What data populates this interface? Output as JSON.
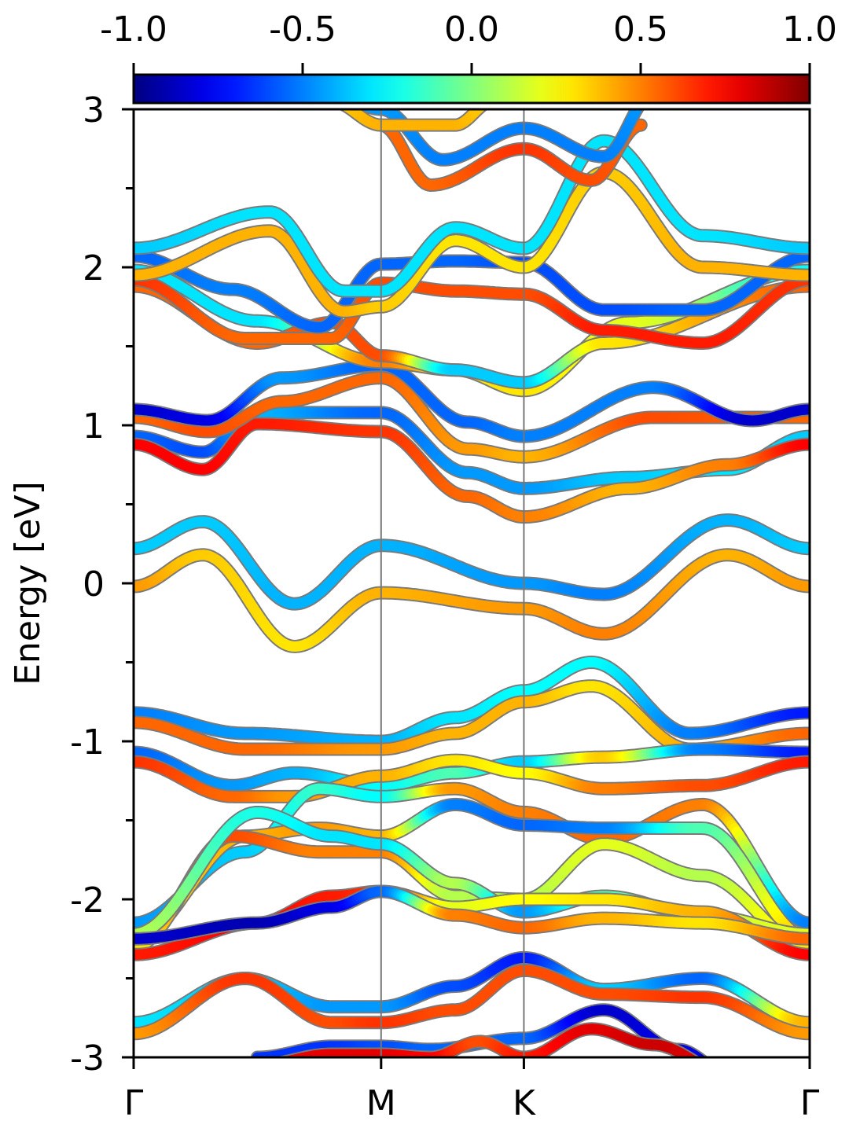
{
  "chart_data": {
    "type": "line",
    "title": "",
    "xlabel": "",
    "ylabel": "Energy [eV]",
    "ylim": [
      -3,
      3
    ],
    "yticks": [
      "-3",
      "-2",
      "-1",
      "0",
      "1",
      "2",
      "3"
    ],
    "xticks": [
      {
        "label": "Γ",
        "pos": 0.0
      },
      {
        "label": "M",
        "pos": 1.0
      },
      {
        "label": "K",
        "pos": 1.577
      },
      {
        "label": "Γ",
        "pos": 2.732
      }
    ],
    "colorbar": {
      "colormap": "jet",
      "range": [
        -1.0,
        1.0
      ],
      "ticks": [
        "-1.0",
        "-0.5",
        "0.0",
        "0.5",
        "1.0"
      ]
    },
    "grid": false,
    "series": [
      {
        "x": [
          0,
          0.28,
          0.65,
          1.0,
          1.577,
          1.9,
          2.4,
          2.732
        ],
        "y": [
          0.22,
          0.39,
          -0.13,
          0.24,
          0.0,
          -0.07,
          0.4,
          0.22
        ],
        "c": [
          -0.35,
          -0.35,
          -0.4,
          -0.4,
          -0.45,
          -0.5,
          -0.4,
          -0.35
        ]
      },
      {
        "x": [
          0,
          0.28,
          0.65,
          1.0,
          1.577,
          1.9,
          2.4,
          2.732
        ],
        "y": [
          -0.02,
          0.18,
          -0.4,
          -0.06,
          -0.16,
          -0.32,
          0.18,
          -0.02
        ],
        "c": [
          0.45,
          0.35,
          0.3,
          0.4,
          0.45,
          0.5,
          0.4,
          0.45
        ]
      },
      {
        "x": [
          0,
          0.28,
          0.5,
          1.0,
          1.35,
          1.577,
          2.0,
          2.4,
          2.732
        ],
        "y": [
          0.93,
          0.83,
          1.08,
          1.08,
          0.7,
          0.6,
          0.67,
          0.72,
          0.93
        ],
        "c": [
          -0.55,
          -0.6,
          -0.4,
          -0.55,
          -0.45,
          -0.45,
          -0.35,
          -0.3,
          -0.35
        ]
      },
      {
        "x": [
          0,
          0.28,
          0.5,
          1.0,
          1.35,
          1.577,
          2.0,
          2.4,
          2.732
        ],
        "y": [
          0.88,
          0.72,
          1.01,
          0.96,
          0.55,
          0.42,
          0.6,
          0.75,
          0.88
        ],
        "c": [
          0.75,
          0.75,
          0.7,
          0.65,
          0.55,
          0.5,
          0.4,
          0.5,
          0.75
        ]
      },
      {
        "x": [
          0,
          0.3,
          0.6,
          1.0,
          1.35,
          1.577,
          2.1,
          2.732
        ],
        "y": [
          1.05,
          0.96,
          1.15,
          1.3,
          0.85,
          0.8,
          1.05,
          1.05
        ],
        "c": [
          0.55,
          0.6,
          0.55,
          0.55,
          0.45,
          0.4,
          0.6,
          0.55
        ]
      },
      {
        "x": [
          0,
          0.3,
          0.6,
          1.0,
          1.35,
          1.577,
          2.1,
          2.5,
          2.732
        ],
        "y": [
          1.1,
          1.03,
          1.3,
          1.38,
          1.02,
          0.93,
          1.24,
          1.03,
          1.1
        ],
        "c": [
          -0.85,
          -0.8,
          -0.45,
          -0.55,
          -0.55,
          -0.5,
          -0.5,
          -0.85,
          -0.85
        ]
      },
      {
        "x": [
          0,
          0.5,
          1.0,
          1.3,
          1.577,
          2.0,
          2.732
        ],
        "y": [
          1.98,
          1.66,
          1.4,
          1.35,
          1.22,
          1.65,
          1.98
        ],
        "c": [
          -0.3,
          -0.3,
          0.5,
          0.3,
          0.3,
          0.2,
          -0.25
        ]
      },
      {
        "x": [
          0,
          0.5,
          0.8,
          1.0,
          1.3,
          1.577,
          1.9,
          2.732
        ],
        "y": [
          1.88,
          1.52,
          1.65,
          1.44,
          1.35,
          1.27,
          1.52,
          1.88
        ],
        "c": [
          0.55,
          0.55,
          0.6,
          0.6,
          -0.35,
          -0.35,
          0.3,
          0.55
        ]
      },
      {
        "x": [
          0,
          0.45,
          0.8,
          1.0,
          1.3,
          1.577,
          1.9,
          2.3,
          2.732
        ],
        "y": [
          1.92,
          1.55,
          1.55,
          1.9,
          1.85,
          1.83,
          1.6,
          1.52,
          1.92
        ],
        "c": [
          0.65,
          0.55,
          0.55,
          0.6,
          0.6,
          0.6,
          0.7,
          0.7,
          0.65
        ]
      },
      {
        "x": [
          0,
          0.4,
          0.75,
          1.0,
          1.3,
          1.577,
          1.9,
          2.3,
          2.732
        ],
        "y": [
          2.07,
          1.86,
          1.62,
          2.02,
          2.04,
          2.03,
          1.73,
          1.73,
          2.07
        ],
        "c": [
          -0.55,
          -0.5,
          -0.55,
          -0.55,
          -0.55,
          -0.6,
          -0.6,
          -0.55,
          -0.55
        ]
      },
      {
        "x": [
          0,
          0.55,
          0.85,
          1.0,
          1.3,
          1.577,
          1.9,
          2.3,
          2.732
        ],
        "y": [
          1.95,
          2.23,
          1.72,
          1.75,
          2.17,
          2.0,
          2.6,
          2.0,
          1.95
        ],
        "c": [
          0.4,
          0.4,
          0.4,
          0.35,
          0.3,
          0.3,
          0.35,
          0.4,
          0.4
        ]
      },
      {
        "x": [
          0,
          0.55,
          0.85,
          1.0,
          1.3,
          1.577,
          1.9,
          2.3,
          2.732
        ],
        "y": [
          2.12,
          2.35,
          1.85,
          1.85,
          2.25,
          2.12,
          2.8,
          2.2,
          2.12
        ],
        "c": [
          -0.35,
          -0.3,
          -0.3,
          -0.3,
          -0.3,
          -0.3,
          -0.3,
          -0.3,
          -0.35
        ]
      },
      {
        "x": [
          1.0,
          1.2,
          1.577,
          1.85,
          2.05
        ],
        "y": [
          2.9,
          2.52,
          2.75,
          2.55,
          2.9
        ],
        "c": [
          0.55,
          0.55,
          0.65,
          0.6,
          0.55
        ]
      },
      {
        "x": [
          0.8,
          1.0,
          1.25,
          1.577,
          1.9,
          2.1
        ],
        "y": [
          3.1,
          3.0,
          2.68,
          2.88,
          2.7,
          3.1
        ],
        "c": [
          -0.4,
          -0.45,
          -0.5,
          -0.5,
          -0.5,
          -0.45
        ]
      },
      {
        "x": [
          0.8,
          1.0,
          1.3,
          1.45
        ],
        "y": [
          3.05,
          2.9,
          2.9,
          3.05
        ],
        "c": [
          0.35,
          0.4,
          0.4,
          0.35
        ]
      },
      {
        "x": [
          0,
          0.45,
          1.0,
          1.3,
          1.577,
          1.85,
          2.25,
          2.732
        ],
        "y": [
          -0.82,
          -0.95,
          -1.0,
          -0.85,
          -0.68,
          -0.5,
          -0.95,
          -0.82
        ],
        "c": [
          -0.5,
          -0.45,
          -0.4,
          -0.3,
          -0.25,
          -0.25,
          -0.5,
          -0.7
        ]
      },
      {
        "x": [
          0,
          0.45,
          1.0,
          1.3,
          1.577,
          1.85,
          2.25,
          2.732
        ],
        "y": [
          -0.88,
          -1.05,
          -1.05,
          -0.95,
          -0.75,
          -0.65,
          -1.05,
          -0.95
        ],
        "c": [
          0.55,
          0.55,
          0.45,
          0.4,
          0.4,
          0.3,
          0.4,
          0.55
        ]
      },
      {
        "x": [
          0,
          0.4,
          0.65,
          1.0,
          1.3,
          1.577,
          1.9,
          2.3,
          2.732
        ],
        "y": [
          -1.07,
          -1.28,
          -1.2,
          -1.28,
          -1.2,
          -1.13,
          -1.1,
          -1.05,
          -1.07
        ],
        "c": [
          -0.55,
          -0.45,
          -0.4,
          -0.25,
          -0.1,
          -0.35,
          0.35,
          -0.5,
          -0.7
        ]
      },
      {
        "x": [
          0,
          0.4,
          0.65,
          1.0,
          1.3,
          1.577,
          1.9,
          2.3,
          2.732
        ],
        "y": [
          -1.13,
          -1.35,
          -1.35,
          -1.22,
          -1.12,
          -1.2,
          -1.3,
          -1.28,
          -1.13
        ],
        "c": [
          0.65,
          0.55,
          0.45,
          0.4,
          0.3,
          0.25,
          0.5,
          0.6,
          0.7
        ]
      },
      {
        "x": [
          0,
          0.45,
          0.75,
          1.0,
          1.3,
          1.577,
          1.9,
          2.3,
          2.732
        ],
        "y": [
          -2.15,
          -1.7,
          -1.3,
          -1.35,
          -1.3,
          -1.45,
          -1.62,
          -1.4,
          -2.15
        ],
        "c": [
          -0.45,
          -0.35,
          -0.15,
          -0.25,
          0.45,
          0.5,
          0.55,
          0.5,
          -0.5
        ]
      },
      {
        "x": [
          0,
          0.45,
          0.75,
          1.0,
          1.3,
          1.577,
          1.9,
          2.3,
          2.732
        ],
        "y": [
          -2.25,
          -1.6,
          -1.55,
          -1.6,
          -1.4,
          -1.53,
          -1.55,
          -1.55,
          -2.25
        ],
        "c": [
          0.3,
          0.4,
          0.45,
          0.4,
          -0.5,
          -0.55,
          -0.5,
          -0.1,
          0.35
        ]
      },
      {
        "x": [
          0,
          0.4,
          0.75,
          1.0,
          1.3,
          1.577,
          1.9,
          2.3,
          2.732
        ],
        "y": [
          -2.3,
          -1.6,
          -1.7,
          -1.7,
          -1.98,
          -2.0,
          -1.65,
          -1.85,
          -2.3
        ],
        "c": [
          0.3,
          0.6,
          0.5,
          0.5,
          0.1,
          0.1,
          0.2,
          0.1,
          0.3
        ]
      },
      {
        "x": [
          0,
          0.5,
          0.8,
          1.0,
          1.3,
          1.577,
          1.9,
          2.3,
          2.732
        ],
        "y": [
          -2.22,
          -1.45,
          -1.6,
          -1.65,
          -1.9,
          -2.08,
          -1.98,
          -2.1,
          -2.22
        ],
        "c": [
          0.1,
          -0.2,
          -0.3,
          -0.3,
          0.1,
          -0.45,
          -0.1,
          0.15,
          0.2
        ]
      },
      {
        "x": [
          0,
          0.5,
          0.8,
          1.0,
          1.3,
          1.577,
          1.9,
          2.3,
          2.732
        ],
        "y": [
          -2.35,
          -2.15,
          -1.98,
          -1.95,
          -2.05,
          -2.0,
          -2.0,
          -2.08,
          -2.35
        ],
        "c": [
          0.7,
          0.75,
          0.7,
          0.65,
          0.2,
          0.25,
          0.3,
          0.4,
          0.75
        ]
      },
      {
        "x": [
          0,
          0.5,
          0.8,
          1.0,
          1.3,
          1.577,
          1.9,
          2.3,
          2.732
        ],
        "y": [
          -2.25,
          -2.15,
          -2.05,
          -1.95,
          -2.1,
          -2.18,
          -2.12,
          -2.15,
          -2.25
        ],
        "c": [
          -0.85,
          -0.9,
          -0.8,
          -0.55,
          0.5,
          0.55,
          0.4,
          0.3,
          0.55
        ]
      },
      {
        "x": [
          0,
          0.45,
          0.8,
          1.0,
          1.3,
          1.577,
          1.9,
          2.3,
          2.732
        ],
        "y": [
          -2.78,
          -2.5,
          -2.68,
          -2.68,
          -2.55,
          -2.37,
          -2.57,
          -2.5,
          -2.78
        ],
        "c": [
          -0.3,
          -0.35,
          -0.45,
          -0.45,
          -0.6,
          -0.7,
          -0.35,
          -0.55,
          0.4
        ]
      },
      {
        "x": [
          0,
          0.45,
          0.8,
          1.0,
          1.3,
          1.577,
          1.9,
          2.3,
          2.732
        ],
        "y": [
          -2.85,
          -2.5,
          -2.78,
          -2.78,
          -2.7,
          -2.45,
          -2.6,
          -2.62,
          -2.85
        ],
        "c": [
          0.45,
          0.65,
          0.6,
          0.65,
          0.6,
          0.6,
          0.6,
          0.65,
          0.45
        ]
      },
      {
        "x": [
          0.5,
          0.8,
          1.0,
          1.2,
          1.577,
          1.9,
          2.2,
          2.4
        ],
        "y": [
          -3.0,
          -2.93,
          -2.93,
          -2.95,
          -2.88,
          -2.7,
          -2.95,
          -3.1
        ],
        "c": [
          -0.65,
          -0.65,
          -0.6,
          -0.55,
          -0.55,
          -0.85,
          -0.8,
          -0.8
        ]
      },
      {
        "x": [
          0.5,
          0.8,
          1.0,
          1.2,
          1.4,
          1.577,
          1.85,
          2.1,
          2.4
        ],
        "y": [
          -3.05,
          -2.98,
          -2.98,
          -3.0,
          -2.9,
          -3.0,
          -2.82,
          -2.92,
          -3.1
        ],
        "c": [
          0.75,
          0.8,
          0.8,
          0.75,
          0.6,
          0.7,
          0.8,
          0.85,
          0.8
        ]
      }
    ]
  }
}
